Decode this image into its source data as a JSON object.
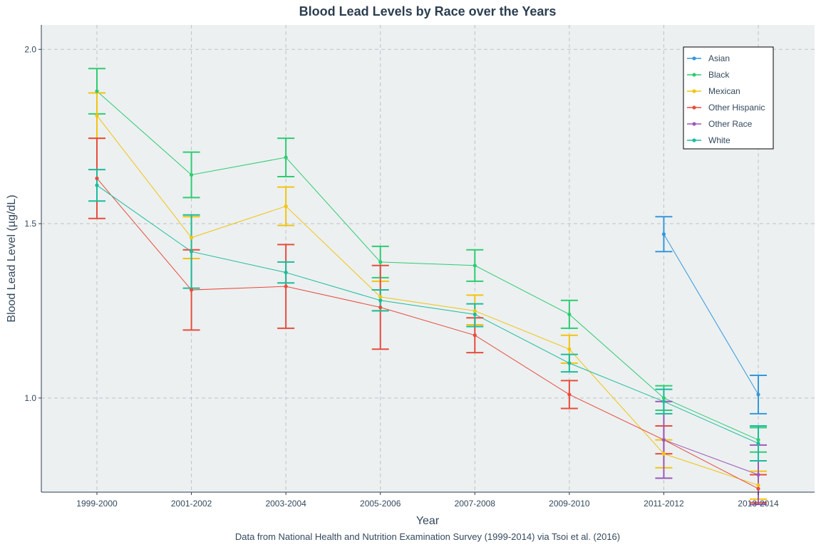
{
  "chart_data": {
    "type": "line",
    "title": "Blood Lead Levels by Race over the Years",
    "xlabel": "Year",
    "ylabel": "Blood Lead Level (µg/dL)",
    "caption": "Data from National Health and Nutrition Examination Survey (1999-2014) via Tsoi et al. (2016)",
    "categories": [
      "1999-2000",
      "2001-2002",
      "2003-2004",
      "2005-2006",
      "2007-2008",
      "2009-2010",
      "2011-2012",
      "2013-2014"
    ],
    "ylim": [
      0.73,
      2.07
    ],
    "yticks": [
      1.0,
      1.5,
      2.0
    ],
    "ytick_labels": [
      "1.0",
      "1.5",
      "2.0"
    ],
    "grid": true,
    "legend_position": "top-right",
    "series": [
      {
        "name": "Asian",
        "color": "#3498db",
        "values": [
          null,
          null,
          null,
          null,
          null,
          null,
          1.47,
          1.01
        ],
        "lower": [
          null,
          null,
          null,
          null,
          null,
          null,
          1.42,
          0.955
        ],
        "upper": [
          null,
          null,
          null,
          null,
          null,
          null,
          1.52,
          1.065
        ]
      },
      {
        "name": "Black",
        "color": "#2ecc71",
        "values": [
          1.88,
          1.64,
          1.69,
          1.39,
          1.38,
          1.24,
          1.0,
          0.88
        ],
        "lower": [
          1.815,
          1.575,
          1.635,
          1.345,
          1.335,
          1.2,
          0.965,
          0.845
        ],
        "upper": [
          1.945,
          1.705,
          1.745,
          1.435,
          1.425,
          1.28,
          1.035,
          0.915
        ]
      },
      {
        "name": "Mexican",
        "color": "#f1c40f",
        "values": [
          1.81,
          1.46,
          1.55,
          1.29,
          1.25,
          1.14,
          0.84,
          0.75
        ],
        "lower": [
          1.745,
          1.4,
          1.495,
          1.25,
          1.21,
          1.1,
          0.8,
          0.71
        ],
        "upper": [
          1.875,
          1.52,
          1.605,
          1.335,
          1.295,
          1.18,
          0.88,
          0.79
        ]
      },
      {
        "name": "Other Hispanic",
        "color": "#e74c3c",
        "values": [
          1.63,
          1.31,
          1.32,
          1.26,
          1.18,
          1.01,
          0.88,
          0.74
        ],
        "lower": [
          1.515,
          1.195,
          1.2,
          1.14,
          1.13,
          0.97,
          0.84,
          0.7
        ],
        "upper": [
          1.745,
          1.425,
          1.44,
          1.38,
          1.23,
          1.05,
          0.92,
          0.78
        ]
      },
      {
        "name": "Other Race",
        "color": "#9b59b6",
        "values": [
          null,
          null,
          null,
          null,
          null,
          null,
          0.88,
          0.78
        ],
        "lower": [
          null,
          null,
          null,
          null,
          null,
          null,
          0.77,
          0.695
        ],
        "upper": [
          null,
          null,
          null,
          null,
          null,
          null,
          0.99,
          0.865
        ]
      },
      {
        "name": "White",
        "color": "#1abc9c",
        "values": [
          1.61,
          1.42,
          1.36,
          1.28,
          1.24,
          1.1,
          0.99,
          0.87
        ],
        "lower": [
          1.565,
          1.315,
          1.33,
          1.25,
          1.205,
          1.075,
          0.955,
          0.82
        ],
        "upper": [
          1.655,
          1.525,
          1.39,
          1.31,
          1.27,
          1.125,
          1.025,
          0.92
        ]
      }
    ]
  }
}
